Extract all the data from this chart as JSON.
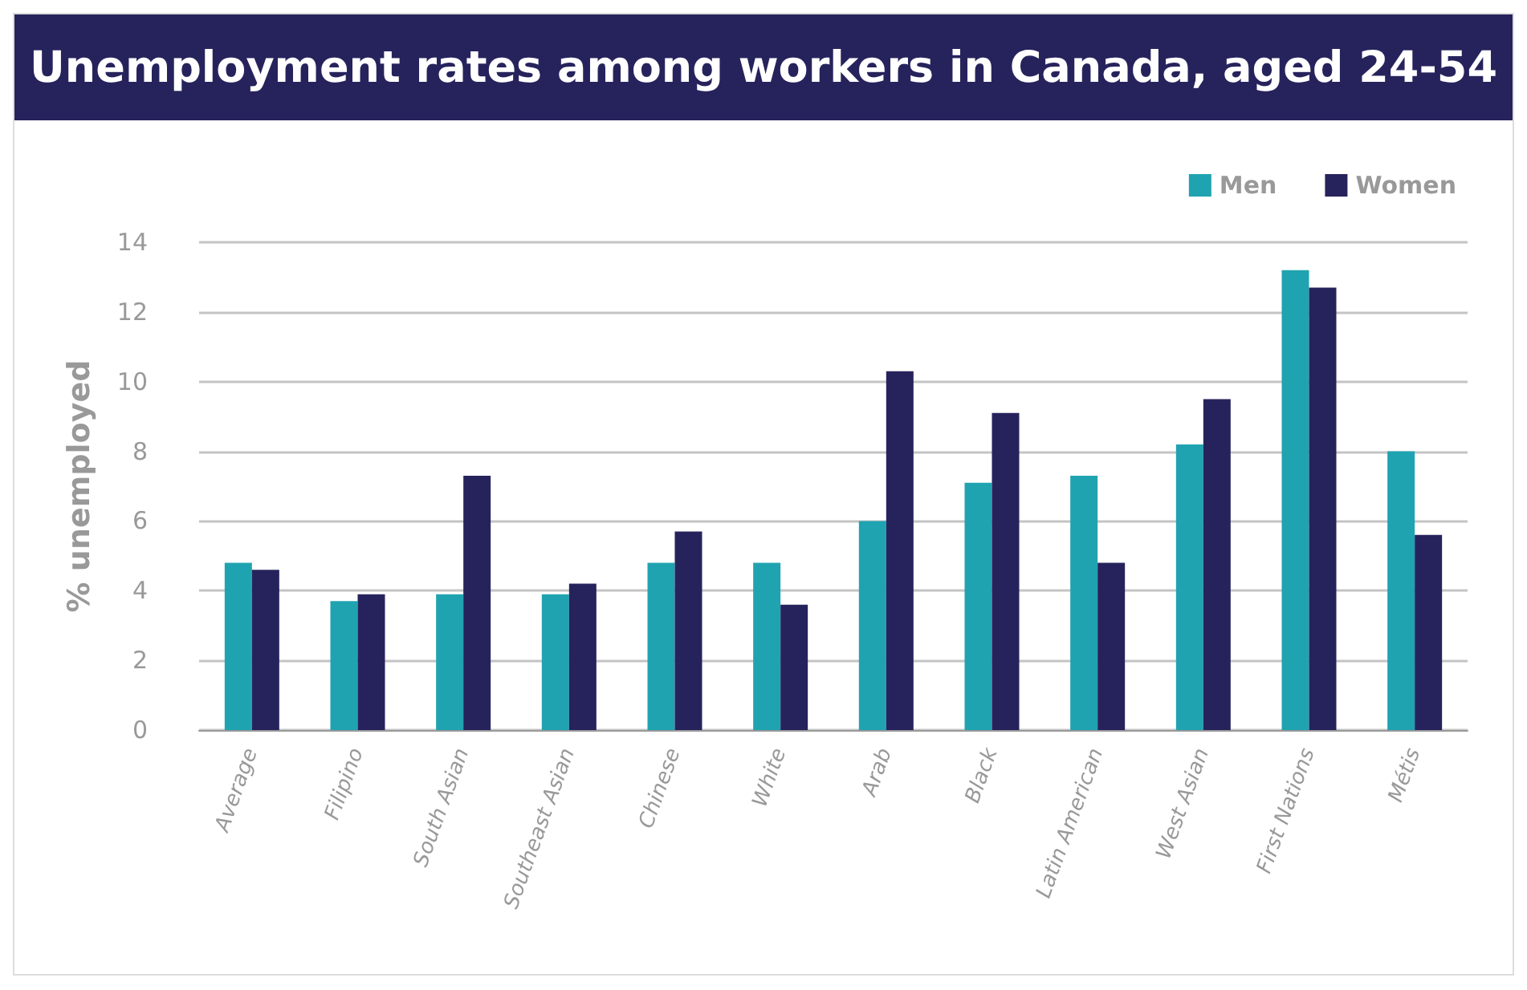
{
  "chart_data": {
    "type": "bar",
    "title": "Unemployment rates among workers in Canada, aged 24-54",
    "ylabel": "% unemployed",
    "categories": [
      "Average",
      "Filipino",
      "South Asian",
      "Southeast Asian",
      "Chinese",
      "White",
      "Arab",
      "Black",
      "Latin American",
      "West Asian",
      "First Nations",
      "Métis"
    ],
    "series": [
      {
        "name": "Men",
        "color": "#20a3b0",
        "values": [
          4.8,
          3.7,
          3.9,
          3.9,
          4.8,
          4.8,
          6.0,
          7.1,
          7.3,
          8.2,
          13.2,
          8.0
        ]
      },
      {
        "name": "Women",
        "color": "#26235c",
        "values": [
          4.6,
          3.9,
          7.3,
          4.2,
          5.7,
          3.6,
          10.3,
          9.1,
          4.8,
          9.5,
          12.7,
          5.6
        ]
      }
    ],
    "ylim": [
      0,
      14
    ],
    "yticks": [
      0,
      2,
      4,
      6,
      8,
      10,
      12,
      14
    ],
    "grid": "y",
    "legend": "top right"
  }
}
